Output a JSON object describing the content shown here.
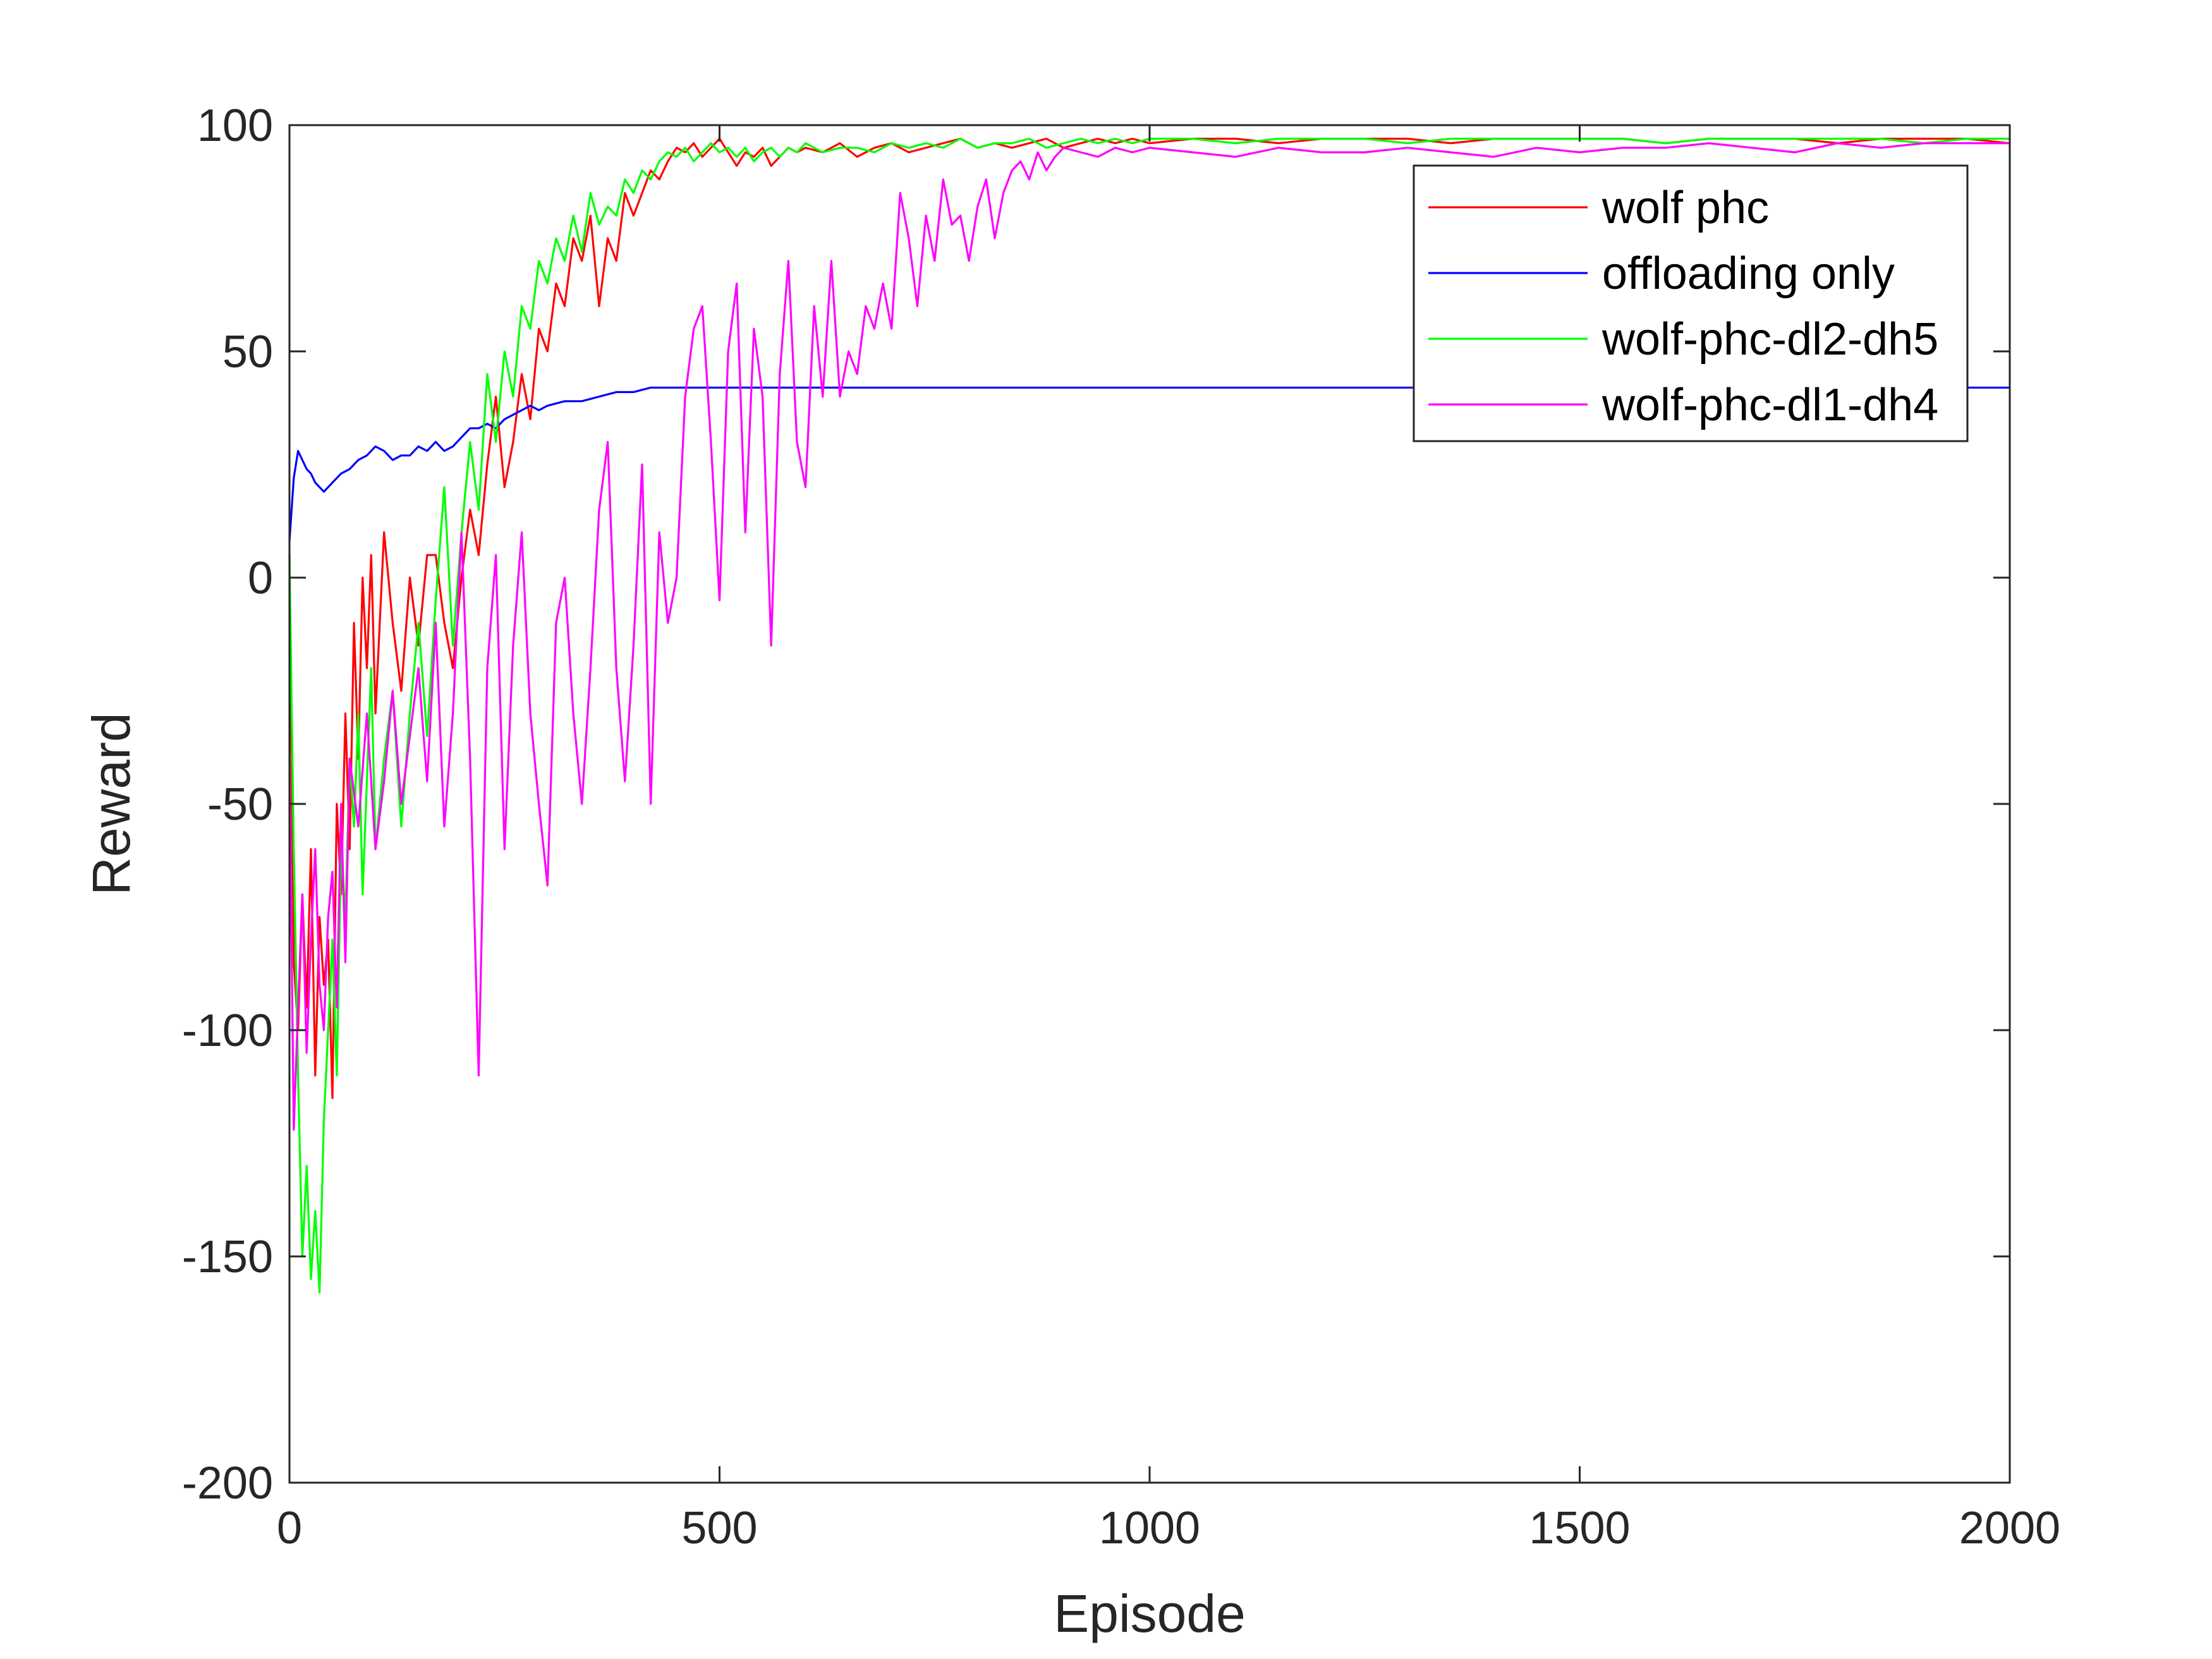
{
  "chart_data": {
    "type": "line",
    "title": "",
    "xlabel": "Episode",
    "ylabel": "Reward",
    "xlim": [
      0,
      2000
    ],
    "ylim": [
      -200,
      100
    ],
    "x_ticks": [
      0,
      500,
      1000,
      1500,
      2000
    ],
    "y_ticks": [
      -200,
      -150,
      -100,
      -50,
      0,
      50,
      100
    ],
    "grid": false,
    "legend_position": "top-right",
    "series": [
      {
        "name": "wolf phc",
        "color": "#ff0000",
        "x": [
          0,
          5,
          10,
          15,
          20,
          25,
          30,
          35,
          40,
          45,
          50,
          55,
          60,
          65,
          70,
          75,
          80,
          85,
          90,
          95,
          100,
          110,
          120,
          130,
          140,
          150,
          160,
          170,
          180,
          190,
          200,
          210,
          220,
          230,
          240,
          250,
          260,
          270,
          280,
          290,
          300,
          310,
          320,
          330,
          340,
          350,
          360,
          370,
          380,
          390,
          400,
          410,
          420,
          430,
          440,
          450,
          460,
          470,
          480,
          490,
          500,
          510,
          520,
          530,
          540,
          550,
          560,
          570,
          580,
          590,
          600,
          620,
          640,
          660,
          680,
          700,
          720,
          740,
          760,
          780,
          800,
          820,
          840,
          860,
          880,
          900,
          920,
          940,
          960,
          980,
          1000,
          1050,
          1100,
          1150,
          1200,
          1250,
          1300,
          1350,
          1400,
          1450,
          1500,
          1550,
          1600,
          1650,
          1700,
          1750,
          1800,
          1850,
          1900,
          1950,
          2000
        ],
        "y": [
          5,
          -85,
          -100,
          -70,
          -95,
          -60,
          -110,
          -75,
          -90,
          -80,
          -115,
          -50,
          -70,
          -30,
          -60,
          -10,
          -40,
          0,
          -20,
          5,
          -30,
          10,
          -10,
          -25,
          0,
          -15,
          5,
          5,
          -10,
          -20,
          0,
          15,
          5,
          25,
          40,
          20,
          30,
          45,
          35,
          55,
          50,
          65,
          60,
          75,
          70,
          80,
          60,
          75,
          70,
          85,
          80,
          85,
          90,
          88,
          92,
          95,
          94,
          96,
          93,
          95,
          97,
          94,
          91,
          94,
          93,
          95,
          91,
          93,
          95,
          94,
          95,
          94,
          96,
          93,
          95,
          96,
          94,
          95,
          96,
          97,
          95,
          96,
          95,
          96,
          97,
          95,
          96,
          97,
          96,
          97,
          96,
          97,
          97,
          96,
          97,
          97,
          97,
          96,
          97,
          97,
          97,
          97,
          96,
          97,
          97,
          97,
          96,
          97,
          97,
          97,
          96
        ]
      },
      {
        "name": "offloading only",
        "color": "#0000ff",
        "x": [
          0,
          5,
          10,
          15,
          20,
          25,
          30,
          35,
          40,
          45,
          50,
          60,
          70,
          80,
          90,
          100,
          110,
          120,
          130,
          140,
          150,
          160,
          170,
          180,
          190,
          200,
          210,
          220,
          230,
          240,
          250,
          260,
          270,
          280,
          290,
          300,
          320,
          340,
          360,
          380,
          400,
          420,
          450,
          500,
          600,
          800,
          1000,
          1500,
          2000
        ],
        "y": [
          8,
          22,
          28,
          26,
          24,
          23,
          21,
          20,
          19,
          20,
          21,
          23,
          24,
          26,
          27,
          29,
          28,
          26,
          27,
          27,
          29,
          28,
          30,
          28,
          29,
          31,
          33,
          33,
          34,
          33,
          35,
          36,
          37,
          38,
          37,
          38,
          39,
          39,
          40,
          41,
          41,
          42,
          42,
          42,
          42,
          42,
          42,
          42,
          42
        ]
      },
      {
        "name": "wolf-phc-dl2-dh5",
        "color": "#00ff00",
        "x": [
          0,
          5,
          10,
          15,
          20,
          25,
          30,
          35,
          40,
          45,
          50,
          55,
          60,
          65,
          70,
          75,
          80,
          85,
          90,
          95,
          100,
          110,
          120,
          130,
          140,
          150,
          160,
          170,
          180,
          190,
          200,
          210,
          220,
          230,
          240,
          250,
          260,
          270,
          280,
          290,
          300,
          310,
          320,
          330,
          340,
          350,
          360,
          370,
          380,
          390,
          400,
          410,
          420,
          430,
          440,
          450,
          460,
          470,
          480,
          490,
          500,
          510,
          520,
          530,
          540,
          550,
          560,
          570,
          580,
          590,
          600,
          620,
          640,
          660,
          680,
          700,
          720,
          740,
          760,
          780,
          800,
          820,
          840,
          860,
          880,
          900,
          920,
          940,
          960,
          980,
          1000,
          1050,
          1100,
          1150,
          1200,
          1250,
          1300,
          1350,
          1400,
          1450,
          1500,
          1550,
          1600,
          1650,
          1700,
          1750,
          1800,
          1850,
          1900,
          1950,
          2000
        ],
        "y": [
          5,
          -60,
          -110,
          -150,
          -130,
          -155,
          -140,
          -158,
          -120,
          -100,
          -80,
          -110,
          -60,
          -75,
          -40,
          -55,
          -30,
          -70,
          -45,
          -20,
          -60,
          -40,
          -25,
          -55,
          -30,
          -10,
          -35,
          -5,
          20,
          -15,
          10,
          30,
          15,
          45,
          30,
          50,
          40,
          60,
          55,
          70,
          65,
          75,
          70,
          80,
          72,
          85,
          78,
          82,
          80,
          88,
          85,
          90,
          88,
          92,
          94,
          93,
          95,
          92,
          94,
          96,
          94,
          95,
          93,
          95,
          92,
          94,
          95,
          93,
          95,
          94,
          96,
          94,
          95,
          95,
          94,
          96,
          95,
          96,
          95,
          97,
          95,
          96,
          96,
          97,
          95,
          96,
          97,
          96,
          97,
          96,
          97,
          97,
          96,
          97,
          97,
          97,
          96,
          97,
          97,
          97,
          97,
          97,
          96,
          97,
          97,
          97,
          97,
          97,
          96,
          97,
          97
        ]
      },
      {
        "name": "wolf-phc-dl1-dh4",
        "color": "#ff00ff",
        "x": [
          0,
          5,
          10,
          15,
          20,
          25,
          30,
          35,
          40,
          45,
          50,
          55,
          60,
          65,
          70,
          80,
          90,
          100,
          110,
          120,
          130,
          140,
          150,
          160,
          170,
          180,
          190,
          200,
          210,
          220,
          230,
          240,
          250,
          260,
          270,
          280,
          290,
          300,
          310,
          320,
          330,
          340,
          350,
          360,
          370,
          380,
          390,
          400,
          410,
          420,
          430,
          440,
          450,
          460,
          470,
          480,
          490,
          500,
          510,
          520,
          530,
          540,
          550,
          560,
          570,
          580,
          590,
          600,
          610,
          620,
          630,
          640,
          650,
          660,
          670,
          680,
          690,
          700,
          710,
          720,
          730,
          740,
          750,
          760,
          770,
          780,
          790,
          800,
          810,
          820,
          830,
          840,
          850,
          860,
          870,
          880,
          890,
          900,
          920,
          940,
          960,
          980,
          1000,
          1050,
          1100,
          1150,
          1200,
          1250,
          1300,
          1350,
          1400,
          1450,
          1500,
          1550,
          1600,
          1650,
          1700,
          1750,
          1800,
          1850,
          1900,
          1950,
          2000
        ],
        "y": [
          -40,
          -122,
          -95,
          -70,
          -105,
          -80,
          -60,
          -90,
          -100,
          -75,
          -65,
          -95,
          -50,
          -85,
          -40,
          -55,
          -30,
          -60,
          -45,
          -25,
          -50,
          -35,
          -20,
          -45,
          -10,
          -55,
          -30,
          10,
          -40,
          -110,
          -20,
          5,
          -60,
          -15,
          10,
          -30,
          -50,
          -68,
          -10,
          0,
          -30,
          -50,
          -20,
          15,
          30,
          -20,
          -45,
          -15,
          25,
          -50,
          10,
          -10,
          0,
          40,
          55,
          60,
          30,
          -5,
          50,
          65,
          10,
          55,
          40,
          -15,
          45,
          70,
          30,
          20,
          60,
          40,
          70,
          40,
          50,
          45,
          60,
          55,
          65,
          55,
          85,
          75,
          60,
          80,
          70,
          88,
          78,
          80,
          70,
          82,
          88,
          75,
          85,
          90,
          92,
          88,
          94,
          90,
          93,
          95,
          94,
          93,
          95,
          94,
          95,
          94,
          93,
          95,
          94,
          94,
          95,
          94,
          93,
          95,
          94,
          95,
          95,
          96,
          95,
          94,
          96,
          95,
          96,
          96,
          96
        ]
      }
    ]
  }
}
